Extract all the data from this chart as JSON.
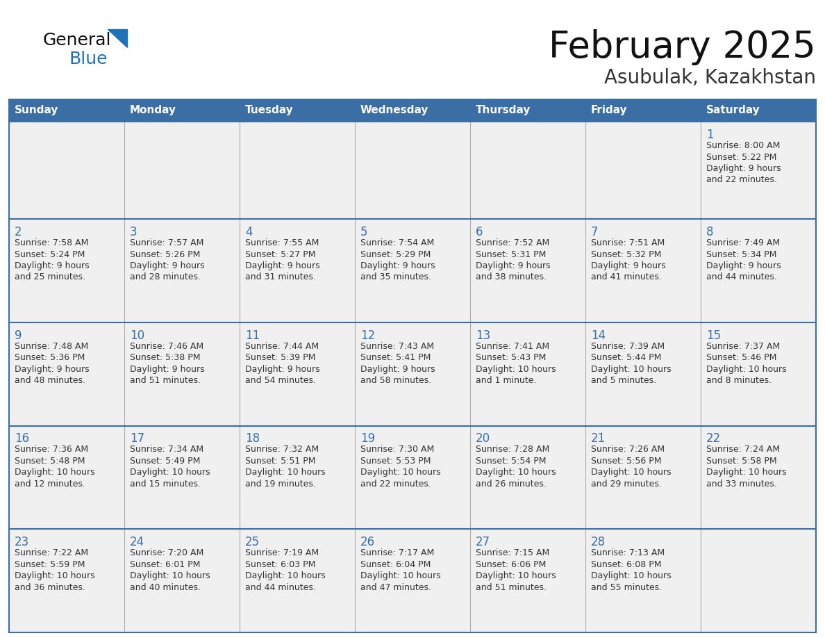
{
  "title": "February 2025",
  "subtitle": "Asubulak, Kazakhstan",
  "days_of_week": [
    "Sunday",
    "Monday",
    "Tuesday",
    "Wednesday",
    "Thursday",
    "Friday",
    "Saturday"
  ],
  "header_bg": "#3a6ea5",
  "header_text": "#ffffff",
  "row_bg": "#f0f0f0",
  "cell_border_color": "#3a6ea5",
  "cell_divider_color": "#aaaaaa",
  "day_number_color": "#3a6ea5",
  "text_color": "#333333",
  "title_color": "#111111",
  "subtitle_color": "#333333",
  "logo_general_color": "#111111",
  "logo_blue_color": "#1e72b8",
  "logo_triangle_color": "#1e72b8",
  "calendar": [
    [
      null,
      null,
      null,
      null,
      null,
      null,
      {
        "day": 1,
        "sunrise": "8:00 AM",
        "sunset": "5:22 PM",
        "daylight": "9 hours and 22 minutes."
      }
    ],
    [
      {
        "day": 2,
        "sunrise": "7:58 AM",
        "sunset": "5:24 PM",
        "daylight": "9 hours and 25 minutes."
      },
      {
        "day": 3,
        "sunrise": "7:57 AM",
        "sunset": "5:26 PM",
        "daylight": "9 hours and 28 minutes."
      },
      {
        "day": 4,
        "sunrise": "7:55 AM",
        "sunset": "5:27 PM",
        "daylight": "9 hours and 31 minutes."
      },
      {
        "day": 5,
        "sunrise": "7:54 AM",
        "sunset": "5:29 PM",
        "daylight": "9 hours and 35 minutes."
      },
      {
        "day": 6,
        "sunrise": "7:52 AM",
        "sunset": "5:31 PM",
        "daylight": "9 hours and 38 minutes."
      },
      {
        "day": 7,
        "sunrise": "7:51 AM",
        "sunset": "5:32 PM",
        "daylight": "9 hours and 41 minutes."
      },
      {
        "day": 8,
        "sunrise": "7:49 AM",
        "sunset": "5:34 PM",
        "daylight": "9 hours and 44 minutes."
      }
    ],
    [
      {
        "day": 9,
        "sunrise": "7:48 AM",
        "sunset": "5:36 PM",
        "daylight": "9 hours and 48 minutes."
      },
      {
        "day": 10,
        "sunrise": "7:46 AM",
        "sunset": "5:38 PM",
        "daylight": "9 hours and 51 minutes."
      },
      {
        "day": 11,
        "sunrise": "7:44 AM",
        "sunset": "5:39 PM",
        "daylight": "9 hours and 54 minutes."
      },
      {
        "day": 12,
        "sunrise": "7:43 AM",
        "sunset": "5:41 PM",
        "daylight": "9 hours and 58 minutes."
      },
      {
        "day": 13,
        "sunrise": "7:41 AM",
        "sunset": "5:43 PM",
        "daylight": "10 hours and 1 minute."
      },
      {
        "day": 14,
        "sunrise": "7:39 AM",
        "sunset": "5:44 PM",
        "daylight": "10 hours and 5 minutes."
      },
      {
        "day": 15,
        "sunrise": "7:37 AM",
        "sunset": "5:46 PM",
        "daylight": "10 hours and 8 minutes."
      }
    ],
    [
      {
        "day": 16,
        "sunrise": "7:36 AM",
        "sunset": "5:48 PM",
        "daylight": "10 hours and 12 minutes."
      },
      {
        "day": 17,
        "sunrise": "7:34 AM",
        "sunset": "5:49 PM",
        "daylight": "10 hours and 15 minutes."
      },
      {
        "day": 18,
        "sunrise": "7:32 AM",
        "sunset": "5:51 PM",
        "daylight": "10 hours and 19 minutes."
      },
      {
        "day": 19,
        "sunrise": "7:30 AM",
        "sunset": "5:53 PM",
        "daylight": "10 hours and 22 minutes."
      },
      {
        "day": 20,
        "sunrise": "7:28 AM",
        "sunset": "5:54 PM",
        "daylight": "10 hours and 26 minutes."
      },
      {
        "day": 21,
        "sunrise": "7:26 AM",
        "sunset": "5:56 PM",
        "daylight": "10 hours and 29 minutes."
      },
      {
        "day": 22,
        "sunrise": "7:24 AM",
        "sunset": "5:58 PM",
        "daylight": "10 hours and 33 minutes."
      }
    ],
    [
      {
        "day": 23,
        "sunrise": "7:22 AM",
        "sunset": "5:59 PM",
        "daylight": "10 hours and 36 minutes."
      },
      {
        "day": 24,
        "sunrise": "7:20 AM",
        "sunset": "6:01 PM",
        "daylight": "10 hours and 40 minutes."
      },
      {
        "day": 25,
        "sunrise": "7:19 AM",
        "sunset": "6:03 PM",
        "daylight": "10 hours and 44 minutes."
      },
      {
        "day": 26,
        "sunrise": "7:17 AM",
        "sunset": "6:04 PM",
        "daylight": "10 hours and 47 minutes."
      },
      {
        "day": 27,
        "sunrise": "7:15 AM",
        "sunset": "6:06 PM",
        "daylight": "10 hours and 51 minutes."
      },
      {
        "day": 28,
        "sunrise": "7:13 AM",
        "sunset": "6:08 PM",
        "daylight": "10 hours and 55 minutes."
      },
      null
    ]
  ]
}
